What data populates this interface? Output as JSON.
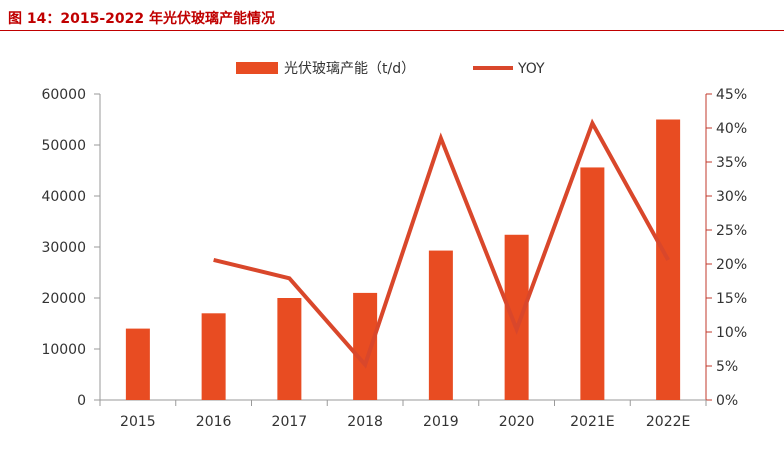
{
  "figure": {
    "title": "图 14：2015-2022 年光伏玻璃产能情况"
  },
  "colors": {
    "bar": "#e84c22",
    "line": "#d9472b",
    "axis_right": "#c0392b",
    "title": "#c00000"
  },
  "chart_data": {
    "type": "bar",
    "categories": [
      "2015",
      "2016",
      "2017",
      "2018",
      "2019",
      "2020",
      "2021E",
      "2022E"
    ],
    "series": [
      {
        "name": "光伏玻璃产能（t/d）",
        "type": "bar",
        "axis": "left",
        "values": [
          14000,
          17000,
          20000,
          21000,
          29300,
          32400,
          45600,
          55000
        ]
      },
      {
        "name": "YOY",
        "type": "line",
        "axis": "right",
        "values": [
          null,
          20.6,
          17.9,
          5.2,
          38.5,
          10.4,
          40.7,
          20.6
        ]
      }
    ],
    "y_left": {
      "ylim": [
        0,
        60000
      ],
      "ticks": [
        "0",
        "10000",
        "20000",
        "30000",
        "40000",
        "50000",
        "60000"
      ]
    },
    "y_right": {
      "ylim": [
        0,
        45
      ],
      "ticks": [
        "0%",
        "5%",
        "10%",
        "15%",
        "20%",
        "25%",
        "30%",
        "35%",
        "40%",
        "45%"
      ]
    },
    "legend_position": "top-center",
    "grid": false
  }
}
